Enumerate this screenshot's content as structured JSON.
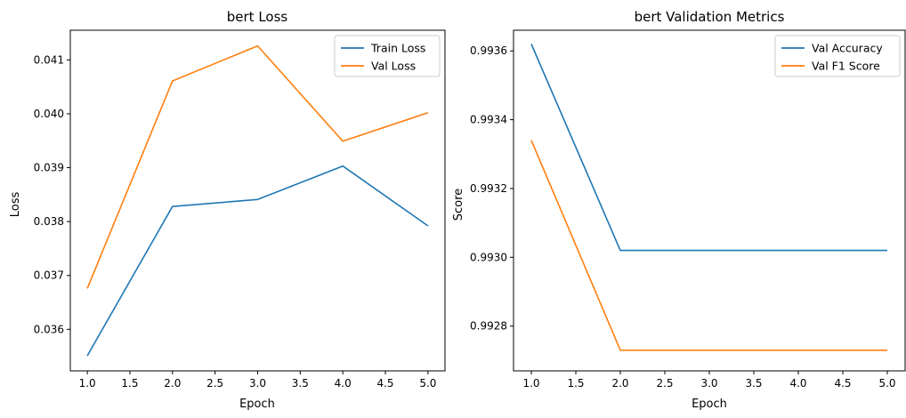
{
  "chart_data": [
    {
      "type": "line",
      "title": "bert Loss",
      "xlabel": "Epoch",
      "ylabel": "Loss",
      "x": [
        1,
        2,
        3,
        4,
        5
      ],
      "xlim": [
        0.8,
        5.2
      ],
      "ylim": [
        0.03523,
        0.04155
      ],
      "xticks": [
        "1.0",
        "1.5",
        "2.0",
        "2.5",
        "3.0",
        "3.5",
        "4.0",
        "4.5",
        "5.0"
      ],
      "yticks": [
        "0.036",
        "0.037",
        "0.038",
        "0.039",
        "0.040",
        "0.041"
      ],
      "series": [
        {
          "name": "Train Loss",
          "color": "#1f77b4",
          "values": [
            0.03551,
            0.03828,
            0.03841,
            0.03903,
            0.03792
          ]
        },
        {
          "name": "Val Loss",
          "color": "#ff7f0e",
          "values": [
            0.03676,
            0.04061,
            0.04126,
            0.03949,
            0.04002
          ]
        }
      ],
      "legend": "top-right",
      "grid": false
    },
    {
      "type": "line",
      "title": "bert Validation Metrics",
      "xlabel": "Epoch",
      "ylabel": "Score",
      "x": [
        1,
        2,
        3,
        4,
        5
      ],
      "xlim": [
        0.8,
        5.2
      ],
      "ylim": [
        0.99267,
        0.99366
      ],
      "xticks": [
        "1.0",
        "1.5",
        "2.0",
        "2.5",
        "3.0",
        "3.5",
        "4.0",
        "4.5",
        "5.0"
      ],
      "yticks": [
        "0.9928",
        "0.9930",
        "0.9932",
        "0.9934",
        "0.9936"
      ],
      "series": [
        {
          "name": "Val Accuracy",
          "color": "#1f77b4",
          "values": [
            0.99362,
            0.99302,
            0.99302,
            0.99302,
            0.99302
          ]
        },
        {
          "name": "Val F1 Score",
          "color": "#ff7f0e",
          "values": [
            0.99334,
            0.99273,
            0.99273,
            0.99273,
            0.99273
          ]
        }
      ],
      "legend": "top-right",
      "grid": false
    }
  ]
}
